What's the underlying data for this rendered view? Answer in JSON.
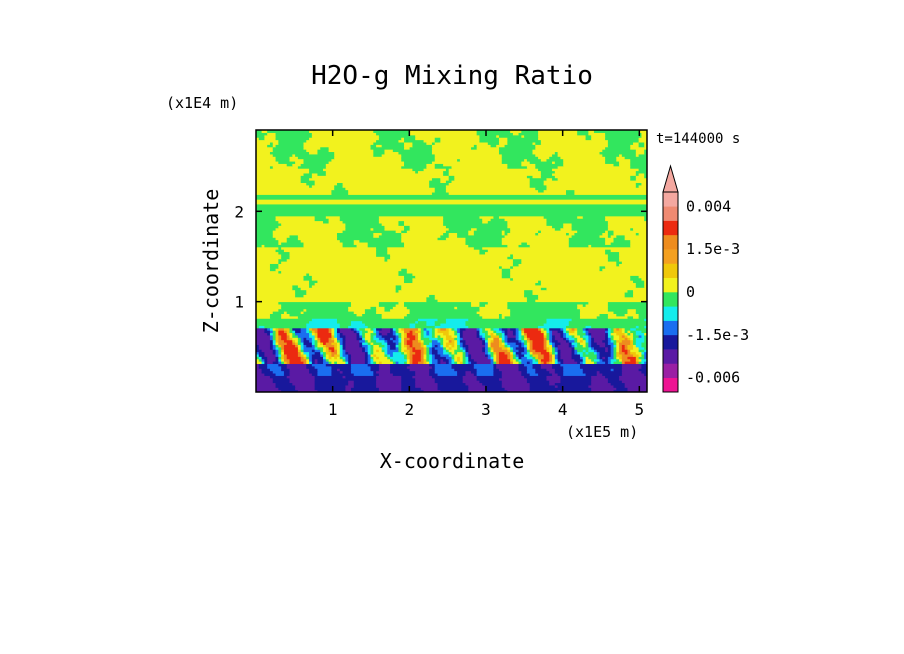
{
  "chart_data": {
    "type": "heatmap",
    "title": "H2O-g Mixing Ratio",
    "xlabel": "X-coordinate",
    "ylabel": "Z-coordinate",
    "x_unit": "(x1E5 m)",
    "y_unit": "(x1E4 m)",
    "time_label": "t=144000 s",
    "xlim": [
      0,
      5.1
    ],
    "ylim": [
      0,
      2.9
    ],
    "x_ticks": [
      1,
      2,
      3,
      4,
      5
    ],
    "y_ticks": [
      1,
      2
    ],
    "colorbar": {
      "labels": [
        {
          "text": "0.004",
          "value": 0.004
        },
        {
          "text": "1.5e-3",
          "value": 0.0015
        },
        {
          "text": "0",
          "value": 0
        },
        {
          "text": "-1.5e-3",
          "value": -0.0015
        },
        {
          "text": "-0.006",
          "value": -0.006
        }
      ],
      "levels": [
        {
          "color": "#ee1493",
          "lo": -0.009,
          "hi": -0.006
        },
        {
          "color": "#9a1fa4",
          "lo": -0.006,
          "hi": -0.0045
        },
        {
          "color": "#5a1aa4",
          "lo": -0.0045,
          "hi": -0.003
        },
        {
          "color": "#18189c",
          "lo": -0.003,
          "hi": -0.0015
        },
        {
          "color": "#1a6ef0",
          "lo": -0.0015,
          "hi": -0.001
        },
        {
          "color": "#14ecec",
          "lo": -0.001,
          "hi": -0.0005
        },
        {
          "color": "#32e65e",
          "lo": -0.0005,
          "hi": 0
        },
        {
          "color": "#f2f21e",
          "lo": 0,
          "hi": 0.0005
        },
        {
          "color": "#f0c80a",
          "lo": 0.0005,
          "hi": 0.001
        },
        {
          "color": "#f4a020",
          "lo": 0.001,
          "hi": 0.0015
        },
        {
          "color": "#ee8c1e",
          "lo": 0.0015,
          "hi": 0.002
        },
        {
          "color": "#ec2a10",
          "lo": 0.002,
          "hi": 0.003
        },
        {
          "color": "#ef8a72",
          "lo": 0.003,
          "hi": 0.004
        },
        {
          "color": "#f4a8a0",
          "lo": 0.004,
          "hi": 0.005
        }
      ],
      "extend": "max"
    },
    "field_summary": [
      {
        "z_range": [
          2.5,
          2.9
        ],
        "dominant": "green",
        "mix": "yellow"
      },
      {
        "z_range": [
          2.0,
          2.5
        ],
        "dominant": "yellow",
        "mix": "green"
      },
      {
        "z_range": [
          1.6,
          2.0
        ],
        "dominant": "green",
        "mix": "yellow"
      },
      {
        "z_range": [
          1.0,
          1.6
        ],
        "dominant": "yellow",
        "mix": "green"
      },
      {
        "z_range": [
          0.7,
          1.0
        ],
        "dominant": "green",
        "mix": "cyan"
      },
      {
        "z_range": [
          0.3,
          0.7
        ],
        "dominant": "blue",
        "mix": "orange"
      },
      {
        "z_range": [
          0.0,
          0.3
        ],
        "dominant": "purple",
        "mix": "blue"
      }
    ]
  }
}
